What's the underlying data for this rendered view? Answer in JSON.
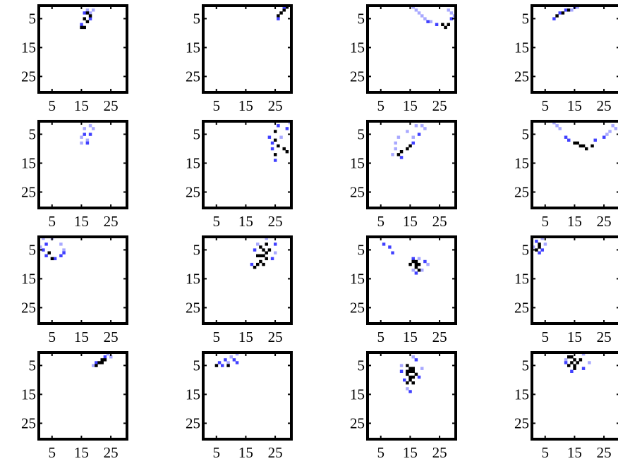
{
  "chart_data": [
    {
      "type": "image",
      "xlim": [
        0.5,
        30.5
      ],
      "ylim": [
        0.5,
        30.5
      ],
      "xticks": [
        5,
        15,
        25
      ],
      "yticks": [
        5,
        15,
        25
      ],
      "colors": [
        "#a8a8ff",
        "#4040ff",
        "#000000"
      ],
      "cells": [
        [
          17,
          2,
          0
        ],
        [
          18,
          3,
          0
        ],
        [
          19,
          2,
          0
        ],
        [
          16,
          3,
          1
        ],
        [
          18,
          5,
          1
        ],
        [
          15,
          7,
          1
        ],
        [
          17,
          3,
          2
        ],
        [
          16,
          5,
          2
        ],
        [
          17,
          6,
          2
        ],
        [
          15,
          8,
          2
        ],
        [
          16,
          8,
          2
        ],
        [
          18,
          4,
          2
        ]
      ]
    },
    {
      "type": "image",
      "xlim": [
        0.5,
        30.5
      ],
      "ylim": [
        0.5,
        30.5
      ],
      "xticks": [
        5,
        15,
        25
      ],
      "yticks": [
        5,
        15,
        25
      ],
      "colors": [
        "#a8a8ff",
        "#4040ff",
        "#000000"
      ],
      "cells": [
        [
          28,
          2,
          2
        ],
        [
          27,
          3,
          2
        ],
        [
          26,
          4,
          2
        ],
        [
          29,
          1,
          2
        ],
        [
          26,
          5,
          1
        ],
        [
          28,
          1,
          1
        ]
      ]
    },
    {
      "type": "image",
      "xlim": [
        0.5,
        30.5
      ],
      "ylim": [
        0.5,
        30.5
      ],
      "xticks": [
        5,
        15,
        25
      ],
      "yticks": [
        5,
        15,
        25
      ],
      "colors": [
        "#a8a8ff",
        "#4040ff",
        "#000000"
      ],
      "cells": [
        [
          16,
          1,
          0
        ],
        [
          17,
          2,
          0
        ],
        [
          18,
          3,
          0
        ],
        [
          19,
          4,
          0
        ],
        [
          20,
          5,
          0
        ],
        [
          22,
          6,
          0
        ],
        [
          28,
          2,
          0
        ],
        [
          29,
          3,
          0
        ],
        [
          30,
          4,
          0
        ],
        [
          21,
          6,
          1
        ],
        [
          24,
          7,
          1
        ],
        [
          29,
          5,
          1
        ],
        [
          26,
          7,
          2
        ],
        [
          27,
          8,
          2
        ],
        [
          28,
          7,
          2
        ]
      ]
    },
    {
      "type": "image",
      "xlim": [
        0.5,
        30.5
      ],
      "ylim": [
        0.5,
        30.5
      ],
      "xticks": [
        5,
        15,
        25
      ],
      "yticks": [
        5,
        15,
        25
      ],
      "colors": [
        "#a8a8ff",
        "#4040ff",
        "#000000"
      ],
      "cells": [
        [
          8,
          5,
          1
        ],
        [
          10,
          3,
          1
        ],
        [
          12,
          2,
          1
        ],
        [
          15,
          1,
          1
        ],
        [
          11,
          3,
          2
        ],
        [
          13,
          2,
          2
        ],
        [
          9,
          4,
          2
        ],
        [
          16,
          1,
          0
        ],
        [
          14,
          2,
          0
        ]
      ]
    },
    {
      "type": "image",
      "xlim": [
        0.5,
        30.5
      ],
      "ylim": [
        0.5,
        30.5
      ],
      "xticks": [
        5,
        15,
        25
      ],
      "yticks": [
        5,
        15,
        25
      ],
      "colors": [
        "#a8a8ff",
        "#4040ff",
        "#000000"
      ],
      "cells": [
        [
          16,
          3,
          0
        ],
        [
          18,
          2,
          0
        ],
        [
          19,
          3,
          0
        ],
        [
          15,
          6,
          0
        ],
        [
          17,
          7,
          0
        ],
        [
          15,
          8,
          0
        ],
        [
          16,
          5,
          1
        ],
        [
          18,
          5,
          1
        ],
        [
          17,
          8,
          1
        ]
      ]
    },
    {
      "type": "image",
      "xlim": [
        0.5,
        30.5
      ],
      "ylim": [
        0.5,
        30.5
      ],
      "xticks": [
        5,
        15,
        25
      ],
      "yticks": [
        5,
        15,
        25
      ],
      "colors": [
        "#a8a8ff",
        "#4040ff",
        "#000000"
      ],
      "cells": [
        [
          23,
          6,
          1
        ],
        [
          24,
          8,
          1
        ],
        [
          24,
          10,
          1
        ],
        [
          25,
          14,
          1
        ],
        [
          26,
          2,
          1
        ],
        [
          29,
          3,
          1
        ],
        [
          25,
          4,
          2
        ],
        [
          25,
          7,
          2
        ],
        [
          26,
          9,
          2
        ],
        [
          28,
          10,
          2
        ],
        [
          29,
          11,
          2
        ],
        [
          25,
          12,
          2
        ],
        [
          30,
          1,
          0
        ],
        [
          27,
          6,
          0
        ]
      ]
    },
    {
      "type": "image",
      "xlim": [
        0.5,
        30.5
      ],
      "ylim": [
        0.5,
        30.5
      ],
      "xticks": [
        5,
        15,
        25
      ],
      "yticks": [
        5,
        15,
        25
      ],
      "colors": [
        "#a8a8ff",
        "#4040ff",
        "#000000"
      ],
      "cells": [
        [
          17,
          2,
          0
        ],
        [
          19,
          2,
          0
        ],
        [
          20,
          3,
          0
        ],
        [
          14,
          4,
          0
        ],
        [
          11,
          6,
          0
        ],
        [
          10,
          8,
          0
        ],
        [
          10,
          10,
          0
        ],
        [
          9,
          12,
          0
        ],
        [
          16,
          6,
          0
        ],
        [
          18,
          5,
          1
        ],
        [
          16,
          8,
          1
        ],
        [
          12,
          13,
          1
        ],
        [
          14,
          10,
          2
        ],
        [
          11,
          12,
          2
        ],
        [
          12,
          11,
          2
        ],
        [
          15,
          9,
          2
        ]
      ]
    },
    {
      "type": "image",
      "xlim": [
        0.5,
        30.5
      ],
      "ylim": [
        0.5,
        30.5
      ],
      "xticks": [
        5,
        15,
        25
      ],
      "yticks": [
        5,
        15,
        25
      ],
      "colors": [
        "#a8a8ff",
        "#4040ff",
        "#000000"
      ],
      "cells": [
        [
          8,
          1,
          0
        ],
        [
          9,
          2,
          0
        ],
        [
          10,
          3,
          0
        ],
        [
          28,
          2,
          0
        ],
        [
          29,
          3,
          0
        ],
        [
          27,
          4,
          0
        ],
        [
          26,
          5,
          0
        ],
        [
          12,
          6,
          1
        ],
        [
          13,
          7,
          1
        ],
        [
          22,
          7,
          1
        ],
        [
          25,
          6,
          1
        ],
        [
          15,
          8,
          2
        ],
        [
          17,
          9,
          2
        ],
        [
          19,
          10,
          2
        ],
        [
          21,
          9,
          2
        ],
        [
          16,
          8,
          2
        ],
        [
          18,
          9,
          2
        ]
      ]
    },
    {
      "type": "image",
      "xlim": [
        0.5,
        30.5
      ],
      "ylim": [
        0.5,
        30.5
      ],
      "xticks": [
        5,
        15,
        25
      ],
      "yticks": [
        5,
        15,
        25
      ],
      "colors": [
        "#a8a8ff",
        "#4040ff",
        "#000000"
      ],
      "cells": [
        [
          2,
          1,
          0
        ],
        [
          5,
          1,
          0
        ],
        [
          8,
          3,
          0
        ],
        [
          9,
          5,
          0
        ],
        [
          1,
          4,
          0
        ],
        [
          3,
          3,
          1
        ],
        [
          2,
          5,
          1
        ],
        [
          3,
          7,
          1
        ],
        [
          6,
          8,
          1
        ],
        [
          8,
          7,
          1
        ],
        [
          9,
          6,
          1
        ],
        [
          4,
          6,
          2
        ],
        [
          5,
          8,
          2
        ]
      ]
    },
    {
      "type": "image",
      "xlim": [
        0.5,
        30.5
      ],
      "ylim": [
        0.5,
        30.5
      ],
      "xticks": [
        5,
        15,
        25
      ],
      "yticks": [
        5,
        15,
        25
      ],
      "colors": [
        "#a8a8ff",
        "#4040ff",
        "#000000"
      ],
      "cells": [
        [
          18,
          5,
          1
        ],
        [
          24,
          8,
          1
        ],
        [
          25,
          3,
          1
        ],
        [
          17,
          10,
          1
        ],
        [
          22,
          1,
          0
        ],
        [
          25,
          6,
          0
        ],
        [
          19,
          3,
          0
        ],
        [
          20,
          4,
          2
        ],
        [
          21,
          5,
          2
        ],
        [
          22,
          6,
          2
        ],
        [
          19,
          7,
          2
        ],
        [
          20,
          7,
          2
        ],
        [
          21,
          7,
          2
        ],
        [
          22,
          8,
          2
        ],
        [
          20,
          9,
          2
        ],
        [
          19,
          10,
          2
        ],
        [
          21,
          10,
          2
        ],
        [
          18,
          11,
          2
        ],
        [
          23,
          5,
          2
        ],
        [
          22,
          3,
          2
        ]
      ]
    },
    {
      "type": "image",
      "xlim": [
        0.5,
        30.5
      ],
      "ylim": [
        0.5,
        30.5
      ],
      "xticks": [
        5,
        15,
        25
      ],
      "yticks": [
        5,
        15,
        25
      ],
      "colors": [
        "#a8a8ff",
        "#4040ff",
        "#000000"
      ],
      "cells": [
        [
          6,
          3,
          1
        ],
        [
          8,
          4,
          1
        ],
        [
          9,
          6,
          1
        ],
        [
          17,
          13,
          1
        ],
        [
          20,
          9,
          1
        ],
        [
          16,
          8,
          1
        ],
        [
          18,
          8,
          0
        ],
        [
          21,
          10,
          0
        ],
        [
          16,
          12,
          0
        ],
        [
          19,
          12,
          0
        ],
        [
          16,
          9,
          2
        ],
        [
          17,
          10,
          2
        ],
        [
          18,
          10,
          2
        ],
        [
          17,
          11,
          2
        ],
        [
          18,
          12,
          2
        ],
        [
          15,
          10,
          2
        ],
        [
          17,
          9,
          2
        ]
      ]
    },
    {
      "type": "image",
      "xlim": [
        0.5,
        30.5
      ],
      "ylim": [
        0.5,
        30.5
      ],
      "xticks": [
        5,
        15,
        25
      ],
      "yticks": [
        5,
        15,
        25
      ],
      "colors": [
        "#a8a8ff",
        "#4040ff",
        "#000000"
      ],
      "cells": [
        [
          2,
          2,
          1
        ],
        [
          4,
          5,
          1
        ],
        [
          3,
          6,
          1
        ],
        [
          5,
          3,
          0
        ],
        [
          1,
          4,
          0
        ],
        [
          4,
          1,
          0
        ],
        [
          3,
          3,
          2
        ],
        [
          3,
          4,
          2
        ],
        [
          2,
          5,
          2
        ]
      ]
    },
    {
      "type": "image",
      "xlim": [
        0.5,
        30.5
      ],
      "ylim": [
        0.5,
        30.5
      ],
      "xticks": [
        5,
        15,
        25
      ],
      "yticks": [
        5,
        15,
        25
      ],
      "colors": [
        "#a8a8ff",
        "#4040ff",
        "#000000"
      ],
      "cells": [
        [
          24,
          1,
          0
        ],
        [
          25,
          2,
          0
        ],
        [
          19,
          5,
          0
        ],
        [
          20,
          4,
          1
        ],
        [
          23,
          2,
          1
        ],
        [
          21,
          4,
          2
        ],
        [
          22,
          3,
          2
        ],
        [
          23,
          3,
          2
        ],
        [
          20,
          5,
          2
        ],
        [
          22,
          4,
          2
        ]
      ]
    },
    {
      "type": "image",
      "xlim": [
        0.5,
        30.5
      ],
      "ylim": [
        0.5,
        30.5
      ],
      "xticks": [
        5,
        15,
        25
      ],
      "yticks": [
        5,
        15,
        25
      ],
      "colors": [
        "#a8a8ff",
        "#4040ff",
        "#000000"
      ],
      "cells": [
        [
          10,
          2,
          0
        ],
        [
          12,
          1,
          0
        ],
        [
          9,
          4,
          0
        ],
        [
          6,
          4,
          1
        ],
        [
          8,
          3,
          1
        ],
        [
          11,
          3,
          1
        ],
        [
          7,
          5,
          1
        ],
        [
          12,
          4,
          1
        ],
        [
          9,
          5,
          2
        ],
        [
          5,
          5,
          2
        ]
      ]
    },
    {
      "type": "image",
      "xlim": [
        0.5,
        30.5
      ],
      "ylim": [
        0.5,
        30.5
      ],
      "xticks": [
        5,
        15,
        25
      ],
      "yticks": [
        5,
        15,
        25
      ],
      "colors": [
        "#a8a8ff",
        "#4040ff",
        "#000000"
      ],
      "cells": [
        [
          16,
          2,
          0
        ],
        [
          12,
          5,
          0
        ],
        [
          19,
          6,
          0
        ],
        [
          14,
          13,
          0
        ],
        [
          12,
          7,
          1
        ],
        [
          18,
          9,
          1
        ],
        [
          13,
          10,
          1
        ],
        [
          15,
          14,
          1
        ],
        [
          17,
          3,
          1
        ],
        [
          14,
          5,
          2
        ],
        [
          15,
          6,
          2
        ],
        [
          16,
          6,
          2
        ],
        [
          14,
          7,
          2
        ],
        [
          15,
          7,
          2
        ],
        [
          16,
          7,
          2
        ],
        [
          17,
          8,
          2
        ],
        [
          14,
          8,
          2
        ],
        [
          15,
          9,
          2
        ],
        [
          16,
          9,
          2
        ],
        [
          15,
          10,
          2
        ],
        [
          14,
          11,
          2
        ],
        [
          16,
          11,
          2
        ]
      ]
    },
    {
      "type": "image",
      "xlim": [
        0.5,
        30.5
      ],
      "ylim": [
        0.5,
        30.5
      ],
      "xticks": [
        5,
        15,
        25
      ],
      "yticks": [
        5,
        15,
        25
      ],
      "colors": [
        "#a8a8ff",
        "#4040ff",
        "#000000"
      ],
      "cells": [
        [
          18,
          1,
          0
        ],
        [
          12,
          3,
          0
        ],
        [
          20,
          4,
          0
        ],
        [
          12,
          4,
          1
        ],
        [
          14,
          7,
          1
        ],
        [
          18,
          6,
          1
        ],
        [
          13,
          2,
          2
        ],
        [
          14,
          2,
          2
        ],
        [
          15,
          3,
          2
        ],
        [
          14,
          4,
          2
        ],
        [
          16,
          4,
          2
        ],
        [
          15,
          5,
          2
        ],
        [
          17,
          3,
          2
        ],
        [
          13,
          5,
          2
        ],
        [
          15,
          6,
          2
        ]
      ]
    }
  ]
}
